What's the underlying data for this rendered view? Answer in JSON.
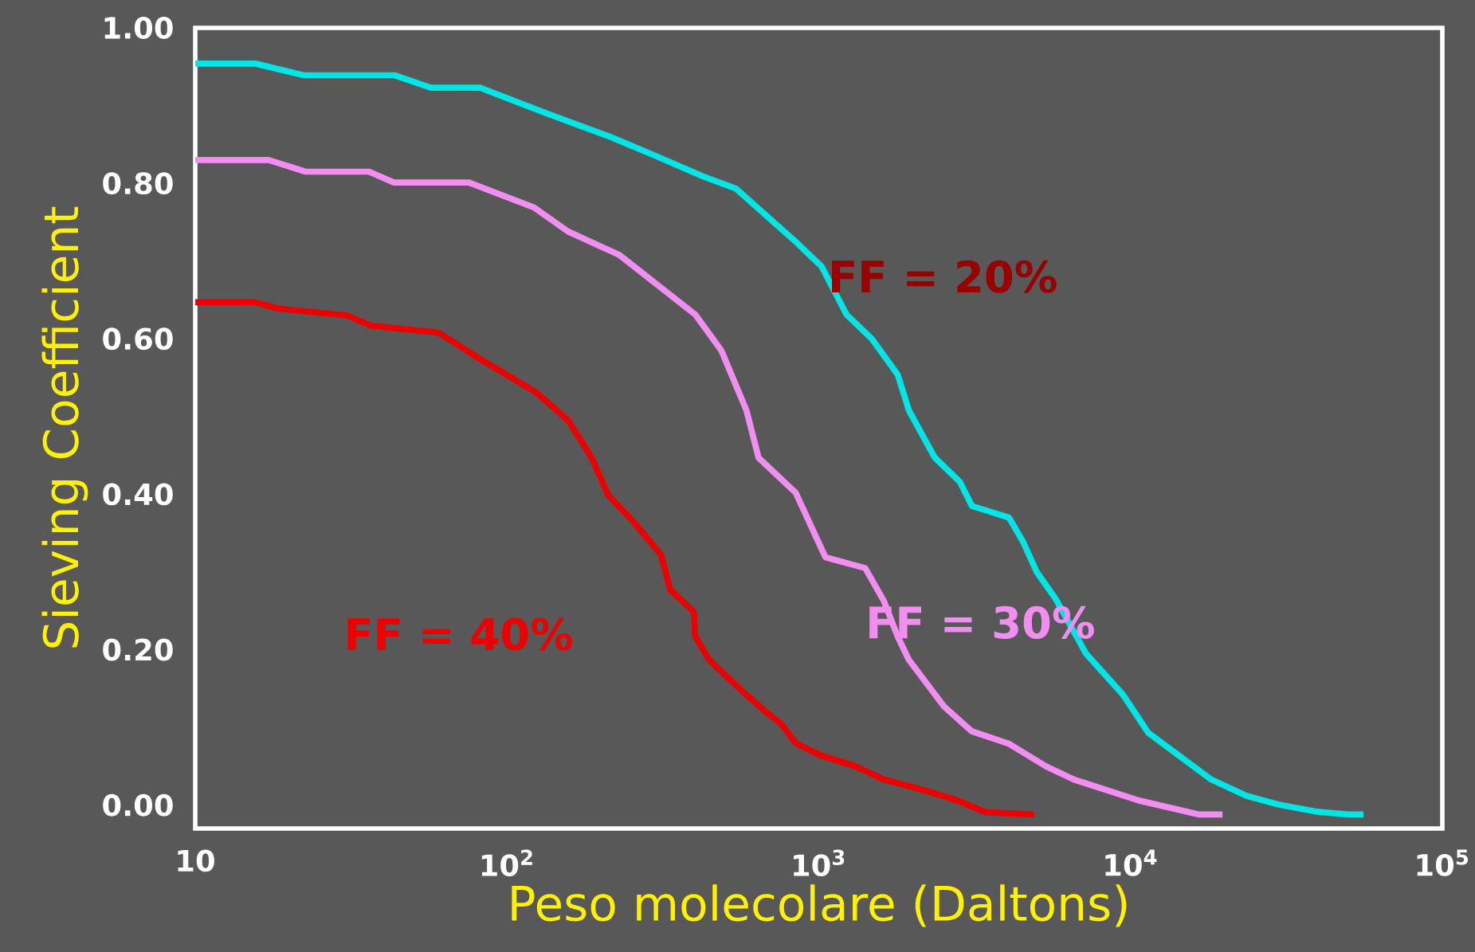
{
  "chart_data": {
    "type": "line",
    "xlabel": "Peso molecolare (Daltons)",
    "ylabel": "Sieving Coefficient",
    "log": "x",
    "xlim": [
      10,
      100000
    ],
    "ylim": [
      -0.03,
      1.0
    ],
    "xticks": [
      {
        "value": 10,
        "label": "10"
      },
      {
        "value": 100,
        "label": "10$^{2}$"
      },
      {
        "value": 1000,
        "label": "10$^{3}$"
      },
      {
        "value": 10000,
        "label": "10$^{4}$"
      },
      {
        "value": 100000,
        "label": "10$^{5}$"
      }
    ],
    "yticks": [
      {
        "value": 0,
        "label": "0.00"
      },
      {
        "value": 0.2,
        "label": "0.20"
      },
      {
        "value": 0.4,
        "label": "0.40"
      },
      {
        "value": 0.6,
        "label": "0.60"
      },
      {
        "value": 0.8,
        "label": "0.80"
      },
      {
        "value": 1.0,
        "label": "1.00"
      }
    ],
    "grid": false,
    "legend": false,
    "marker": "none",
    "line_style": "solid",
    "series": [
      {
        "name": "FF = 20%",
        "color": "#00e5e5",
        "x": [
          10,
          15.6,
          22.3,
          43.6,
          57,
          82,
          132,
          214,
          301,
          425,
          543,
          843,
          1021,
          1228,
          1479,
          1791,
          1945,
          2356,
          2834,
          3098,
          4074,
          4519,
          5001,
          5741,
          7194,
          9460,
          11400,
          14490,
          18160,
          23550,
          29720,
          39080,
          49660,
          55850
        ],
        "values": [
          0.954,
          0.954,
          0.939,
          0.939,
          0.923,
          0.923,
          0.891,
          0.86,
          0.835,
          0.809,
          0.793,
          0.725,
          0.693,
          0.631,
          0.6,
          0.554,
          0.508,
          0.447,
          0.416,
          0.385,
          0.37,
          0.339,
          0.3,
          0.266,
          0.195,
          0.142,
          0.093,
          0.062,
          0.033,
          0.012,
          0.001,
          -0.008,
          -0.012,
          -0.012
        ]
      },
      {
        "name": "FF = 30%",
        "color": "#f28ef2",
        "x": [
          10,
          17.2,
          22.6,
          36.1,
          43.4,
          75.5,
          122,
          157,
          229,
          402,
          487,
          586,
          641,
          843,
          1050,
          1409,
          1616,
          1791,
          1945,
          2523,
          3098,
          4074,
          5358,
          6580,
          10640,
          16600,
          19720
        ],
        "values": [
          0.83,
          0.83,
          0.815,
          0.815,
          0.801,
          0.801,
          0.769,
          0.738,
          0.708,
          0.631,
          0.585,
          0.508,
          0.447,
          0.402,
          0.319,
          0.305,
          0.263,
          0.217,
          0.187,
          0.127,
          0.095,
          0.079,
          0.05,
          0.033,
          0.006,
          -0.012,
          -0.012
        ]
      },
      {
        "name": "FF = 40%",
        "color": "#ee0000",
        "x": [
          10,
          15.6,
          18.4,
          30.8,
          36.5,
          60.3,
          82,
          124,
          157,
          187,
          211,
          254,
          312,
          334,
          397,
          402,
          445,
          578,
          663,
          760,
          843,
          1000,
          1315,
          1616,
          2056,
          2704,
          3436,
          4898
        ],
        "values": [
          0.647,
          0.647,
          0.639,
          0.63,
          0.617,
          0.608,
          0.574,
          0.531,
          0.495,
          0.447,
          0.399,
          0.365,
          0.322,
          0.277,
          0.249,
          0.217,
          0.187,
          0.144,
          0.123,
          0.104,
          0.08,
          0.065,
          0.05,
          0.033,
          0.022,
          0.008,
          -0.009,
          -0.012
        ]
      }
    ]
  }
}
